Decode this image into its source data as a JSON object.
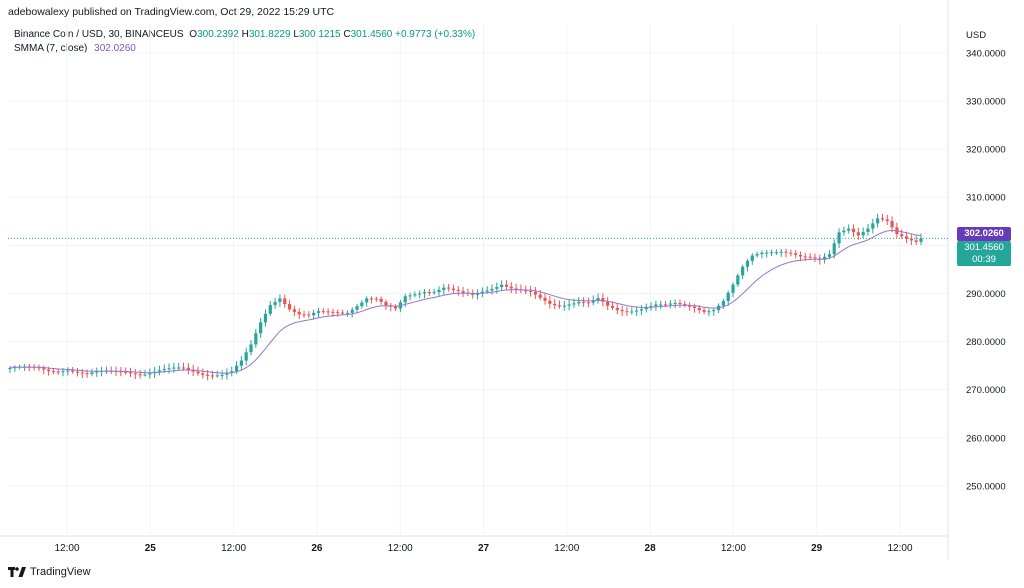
{
  "header": {
    "attribution": "adebowalexy published on TradingView.com, Oct 29, 2022 15:29 UTC"
  },
  "legend": {
    "symbol": "Binance Coin / USD, 30, BINANCEUS",
    "o_label": "O",
    "o_value": "300.2392",
    "h_label": "H",
    "h_value": "301.8229",
    "l_label": "L",
    "l_value": "300.1215",
    "c_label": "C",
    "c_value": "301.4560",
    "change": "+0.9773 (+0.33%)",
    "indicator_name": "SMMA (7, close)",
    "indicator_value": "302.0260"
  },
  "price_axis": {
    "unit": "USD"
  },
  "price_tags": {
    "smma": "302.0260",
    "last": "301.4560",
    "countdown": "00:39"
  },
  "footer": {
    "brand": "TradingView"
  },
  "colors": {
    "up": "#26a69a",
    "down": "#ef5350",
    "smma": "#9575cd",
    "grid": "#f0f3fa"
  },
  "chart_data": {
    "type": "candlestick",
    "ylim": [
      240,
      346
    ],
    "y_ticks": [
      "340.0000",
      "330.0000",
      "320.0000",
      "310.0000",
      "300.0000",
      "290.0000",
      "280.0000",
      "270.0000",
      "260.0000",
      "250.0000"
    ],
    "x_ticks": [
      "12:00",
      "25",
      "12:00",
      "26",
      "12:00",
      "27",
      "12:00",
      "28",
      "12:00",
      "29",
      "12:00"
    ],
    "last_price": 301.456,
    "smma_last": 302.026,
    "grid": true,
    "anchors": [
      [
        0,
        274.5
      ],
      [
        8,
        274.0
      ],
      [
        12,
        274.5
      ],
      [
        16,
        273.0
      ],
      [
        20,
        273.5
      ],
      [
        24,
        274.0
      ],
      [
        28,
        273.5
      ],
      [
        32,
        273.8
      ],
      [
        36,
        274.3
      ],
      [
        40,
        273.6
      ],
      [
        44,
        273.2
      ],
      [
        46,
        273.5
      ],
      [
        48,
        275.5
      ],
      [
        50,
        279
      ],
      [
        52,
        284
      ],
      [
        54,
        288
      ],
      [
        56,
        289.5
      ],
      [
        58,
        287
      ],
      [
        60,
        285.5
      ],
      [
        62,
        285
      ],
      [
        64,
        285.8
      ],
      [
        66,
        286
      ],
      [
        68,
        286.3
      ],
      [
        70,
        286.5
      ],
      [
        72,
        287.8
      ],
      [
        74,
        289
      ],
      [
        76,
        288.5
      ],
      [
        78,
        287
      ],
      [
        80,
        286.5
      ],
      [
        82,
        289.5
      ],
      [
        84,
        290.3
      ],
      [
        86,
        290.8
      ],
      [
        88,
        290.5
      ],
      [
        90,
        291
      ],
      [
        92,
        290.2
      ],
      [
        94,
        289.7
      ],
      [
        96,
        289.6
      ],
      [
        98,
        290.7
      ],
      [
        100,
        291.5
      ],
      [
        102,
        292.2
      ],
      [
        104,
        291
      ],
      [
        106,
        290.2
      ],
      [
        108,
        289.8
      ],
      [
        110,
        288.8
      ],
      [
        112,
        288
      ],
      [
        114,
        287.8
      ],
      [
        116,
        288.2
      ],
      [
        118,
        288.4
      ],
      [
        120,
        287.8
      ],
      [
        122,
        288.5
      ],
      [
        124,
        287
      ],
      [
        126,
        286.5
      ],
      [
        128,
        286.5
      ],
      [
        130,
        287
      ],
      [
        132,
        287.4
      ],
      [
        134,
        287.6
      ],
      [
        136,
        287.2
      ],
      [
        138,
        287.5
      ],
      [
        140,
        287.3
      ],
      [
        142,
        287.2
      ],
      [
        144,
        286.7
      ],
      [
        146,
        287
      ],
      [
        148,
        288.5
      ],
      [
        150,
        291.5
      ],
      [
        152,
        295
      ],
      [
        154,
        297.5
      ],
      [
        156,
        298.5
      ],
      [
        158,
        299
      ],
      [
        160,
        299.2
      ],
      [
        162,
        298.6
      ],
      [
        164,
        297.5
      ],
      [
        166,
        297
      ],
      [
        168,
        296.5
      ],
      [
        170,
        298
      ],
      [
        172,
        303
      ],
      [
        174,
        304
      ],
      [
        176,
        302.5
      ],
      [
        178,
        303.5
      ],
      [
        180,
        305.2
      ],
      [
        182,
        304.5
      ],
      [
        184,
        302
      ],
      [
        186,
        301.5
      ],
      [
        188,
        301.2
      ],
      [
        189,
        301.456
      ]
    ]
  }
}
